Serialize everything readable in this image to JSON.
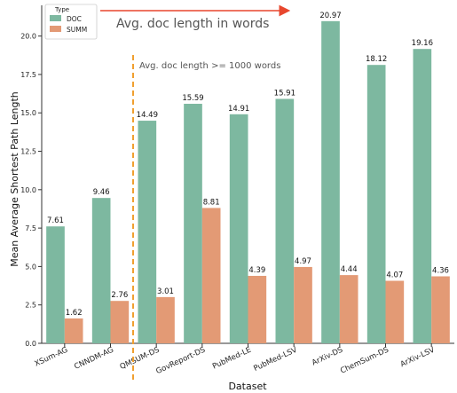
{
  "chart_data": {
    "type": "bar",
    "categories": [
      "XSum-AG",
      "CNNDM-AG",
      "QMSUM-DS",
      "GovReport-DS",
      "PubMed-LE",
      "PubMed-LSV",
      "ArXiv-DS",
      "ChemSum-DS",
      "ArXiv-LSV"
    ],
    "series": [
      {
        "name": "DOC",
        "color": "#7db8a0",
        "values": [
          7.61,
          9.46,
          14.49,
          15.59,
          14.91,
          15.91,
          20.97,
          18.12,
          19.16
        ]
      },
      {
        "name": "SUMM",
        "color": "#e39a75",
        "values": [
          1.62,
          2.76,
          3.01,
          8.81,
          4.39,
          4.97,
          4.44,
          4.07,
          4.36
        ]
      }
    ],
    "xlabel": "Dataset",
    "ylabel": "Mean Average Shortest Path Length",
    "ylim": [
      0,
      22
    ],
    "yticks": [
      "0.0",
      "2.5",
      "5.0",
      "7.5",
      "10.0",
      "12.5",
      "15.0",
      "17.5",
      "20.0"
    ],
    "legend": {
      "title": "Type",
      "placement": "top-left"
    },
    "grid": false,
    "annotations": {
      "arrow_text": "Avg. doc length in words",
      "arrow_color": "#e8472e",
      "divider_text": "Avg. doc length >= 1000 words",
      "divider_color": "#f0a030"
    }
  }
}
